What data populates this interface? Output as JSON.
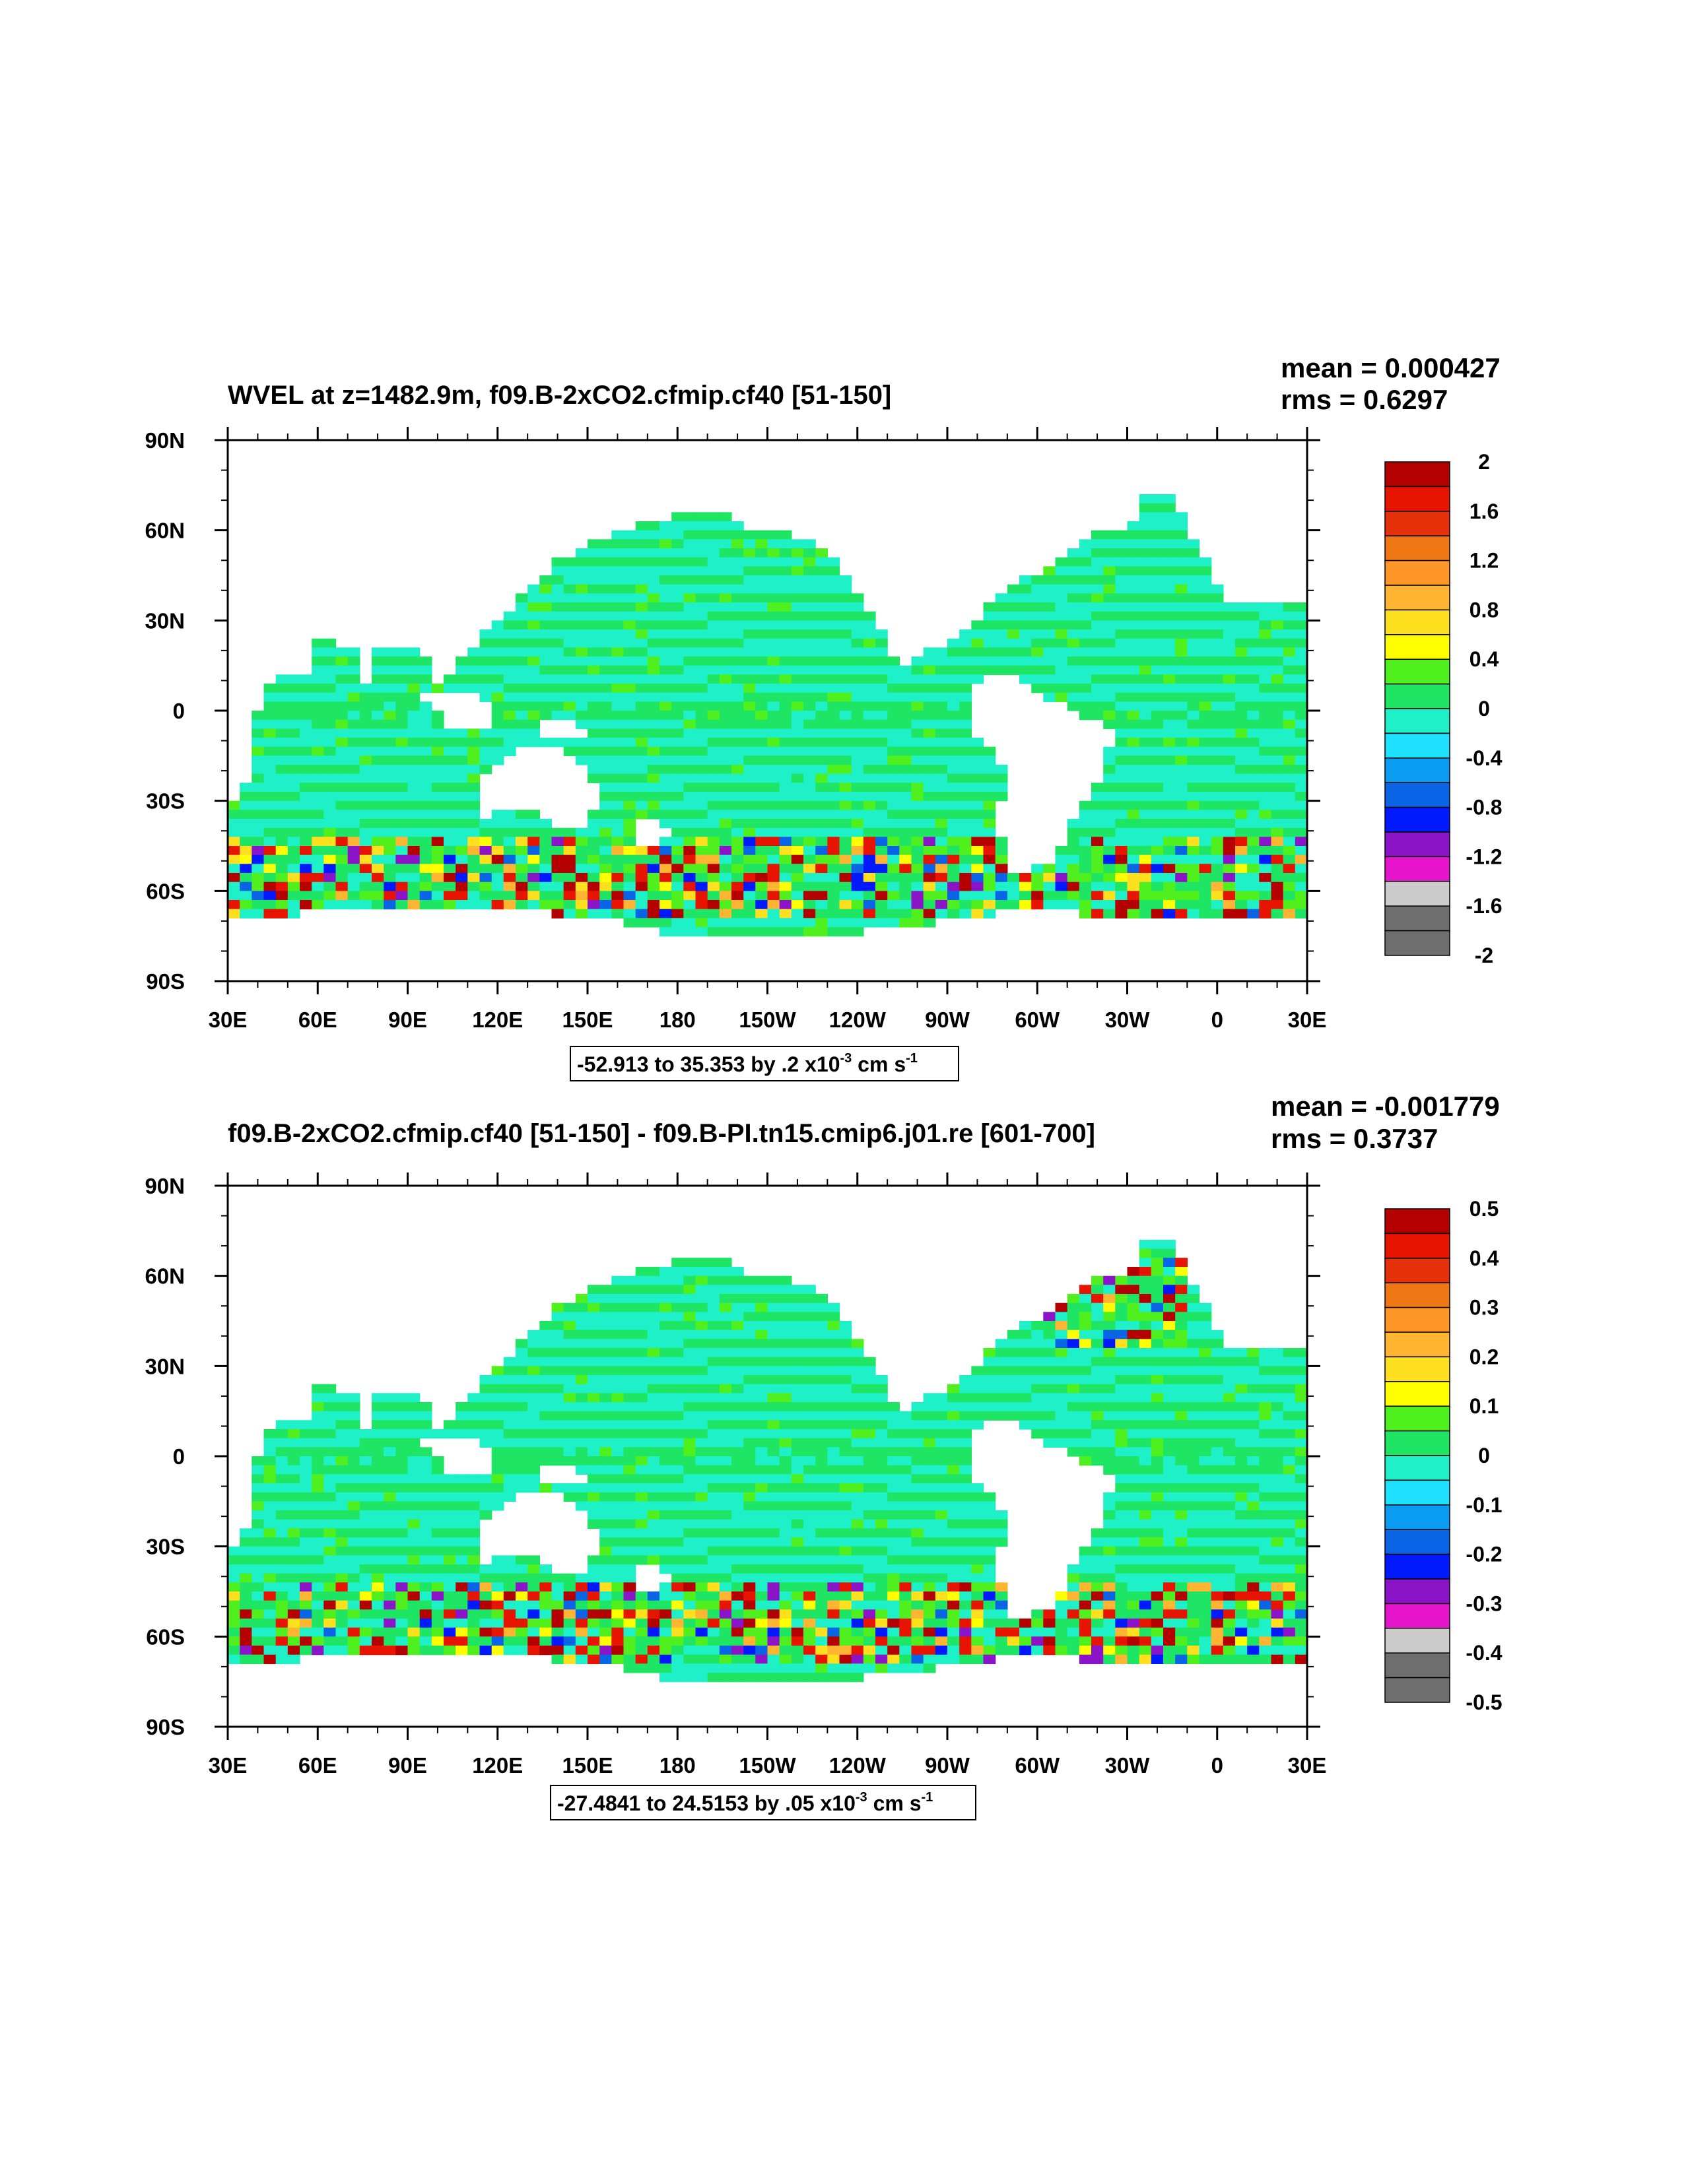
{
  "colors": {
    "land": "#ffffff",
    "palette": [
      "#6e6e6e",
      "#cccccc",
      "#e614cc",
      "#8c14c8",
      "#0019ff",
      "#0a64e6",
      "#0a9cf0",
      "#1ee1ff",
      "#1ef0c8",
      "#1ee664",
      "#50f01e",
      "#ffff00",
      "#ffe01e",
      "#ffb432",
      "#ff9628",
      "#f07814",
      "#e6320a",
      "#e61400",
      "#b40000"
    ]
  },
  "plots": [
    {
      "title": "WVEL at z=1482.9m, f09.B-2xCO2.cfmip.cf40 [51-150]",
      "mean_text": "mean = 0.000427",
      "rms_text": "rms = 0.6297",
      "range_text": "-52.913 to 35.353 by .2 x10",
      "range_exp": "-3",
      "range_unit": " cm s",
      "range_unit_exp": "-1",
      "colorbar_labels": [
        "2",
        "1.6",
        "1.2",
        "0.8",
        "0.4",
        "0",
        "-0.4",
        "-0.8",
        "-1.2",
        "-1.6",
        "-2"
      ],
      "variant": 0
    },
    {
      "title": "f09.B-2xCO2.cfmip.cf40 [51-150] - f09.B-PI.tn15.cmip6.j01.re [601-700]",
      "mean_text": "mean = -0.001779",
      "rms_text": "rms = 0.3737",
      "range_text": "-27.4841 to 24.5153 by .05 x10",
      "range_exp": "-3",
      "range_unit": " cm s",
      "range_unit_exp": "-1",
      "colorbar_labels": [
        "0.5",
        "0.4",
        "0.3",
        "0.2",
        "0.1",
        "0",
        "-0.1",
        "-0.2",
        "-0.3",
        "-0.4",
        "-0.5"
      ],
      "variant": 1
    }
  ],
  "chart_data": [
    {
      "type": "heatmap",
      "title": "WVEL at z=1482.9m, f09.B-2xCO2.cfmip.cf40 [51-150]",
      "x_tick_labels": [
        "30E",
        "60E",
        "90E",
        "120E",
        "150E",
        "180",
        "150W",
        "120W",
        "90W",
        "60W",
        "30W",
        "0",
        "30E"
      ],
      "y_tick_labels": [
        "90N",
        "60N",
        "30N",
        "0",
        "30S",
        "60S",
        "90S"
      ],
      "xlim": [
        30,
        390
      ],
      "ylim": [
        -90,
        90
      ],
      "colorbar_levels": [
        2,
        1.6,
        1.2,
        0.8,
        0.4,
        0,
        -0.4,
        -0.8,
        -1.2,
        -1.6,
        -2
      ],
      "statistics": {
        "mean": 0.000427,
        "rms": 0.6297,
        "min": -52.913,
        "max": 35.353,
        "interval": 0.2,
        "scale": "x10^-3",
        "units": "cm s^-1"
      }
    },
    {
      "type": "heatmap",
      "title": "f09.B-2xCO2.cfmip.cf40 [51-150] - f09.B-PI.tn15.cmip6.j01.re [601-700]",
      "x_tick_labels": [
        "30E",
        "60E",
        "90E",
        "120E",
        "150E",
        "180",
        "150W",
        "120W",
        "90W",
        "60W",
        "30W",
        "0",
        "30E"
      ],
      "y_tick_labels": [
        "90N",
        "60N",
        "30N",
        "0",
        "30S",
        "60S",
        "90S"
      ],
      "xlim": [
        30,
        390
      ],
      "ylim": [
        -90,
        90
      ],
      "colorbar_levels": [
        0.5,
        0.4,
        0.3,
        0.2,
        0.1,
        0,
        -0.1,
        -0.2,
        -0.3,
        -0.4,
        -0.5
      ],
      "statistics": {
        "mean": -0.001779,
        "rms": 0.3737,
        "min": -27.4841,
        "max": 24.5153,
        "interval": 0.05,
        "scale": "x10^-3",
        "units": "cm s^-1"
      }
    }
  ]
}
